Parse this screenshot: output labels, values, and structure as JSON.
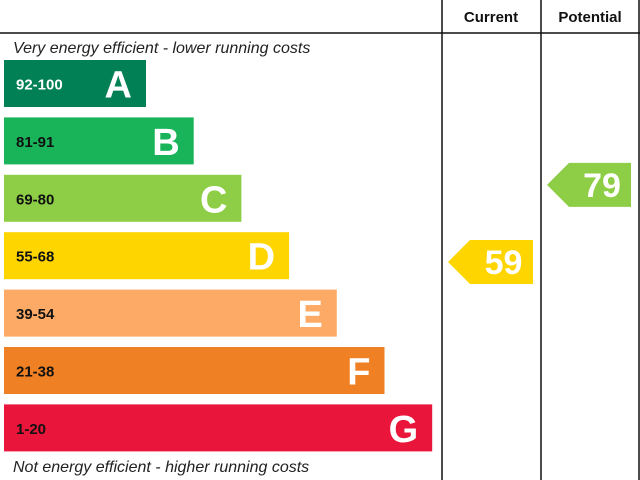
{
  "header": {
    "current_label": "Current",
    "potential_label": "Potential"
  },
  "captions": {
    "top": "Very energy efficient - lower running costs",
    "bottom": "Not energy efficient - higher running costs"
  },
  "chart_data": {
    "type": "bar",
    "categories": [
      "A",
      "B",
      "C",
      "D",
      "E",
      "F",
      "G"
    ],
    "bands": [
      {
        "letter": "A",
        "range": "92-100",
        "min": 92,
        "max": 100,
        "color": "#008054",
        "range_text_color": "#ffffff"
      },
      {
        "letter": "B",
        "range": "81-91",
        "min": 81,
        "max": 91,
        "color": "#19b459",
        "range_text_color": "#111111"
      },
      {
        "letter": "C",
        "range": "69-80",
        "min": 69,
        "max": 80,
        "color": "#8dce46",
        "range_text_color": "#111111"
      },
      {
        "letter": "D",
        "range": "55-68",
        "min": 55,
        "max": 68,
        "color": "#ffd500",
        "range_text_color": "#111111"
      },
      {
        "letter": "E",
        "range": "39-54",
        "min": 39,
        "max": 54,
        "color": "#fcaa65",
        "range_text_color": "#111111"
      },
      {
        "letter": "F",
        "range": "21-38",
        "min": 21,
        "max": 38,
        "color": "#ef8023",
        "range_text_color": "#111111"
      },
      {
        "letter": "G",
        "range": "1-20",
        "min": 1,
        "max": 20,
        "color": "#e9153b",
        "range_text_color": "#111111"
      }
    ],
    "current": {
      "value": 59,
      "band": "D",
      "color": "#ffd500"
    },
    "potential": {
      "value": 79,
      "band": "C",
      "color": "#8dce46"
    }
  }
}
